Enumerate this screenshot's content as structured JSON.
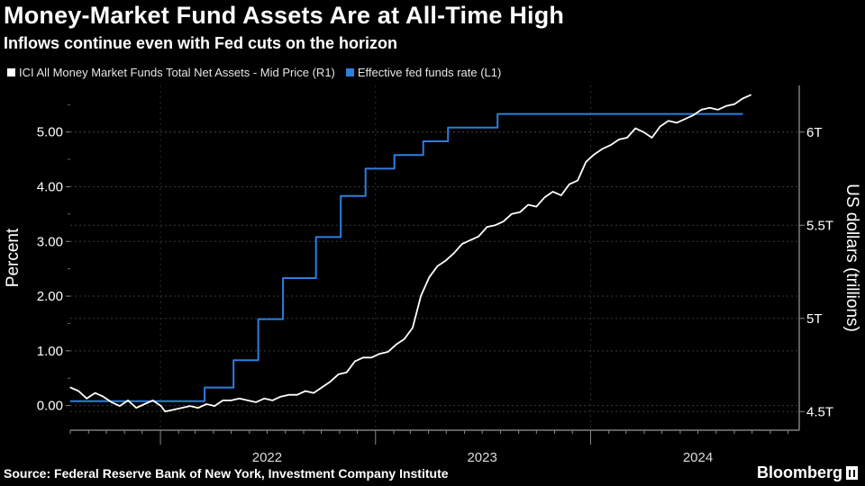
{
  "header": {
    "title": "Money-Market Fund Assets Are at All-Time High",
    "subtitle": "Inflows continue even with Fed cuts on the horizon"
  },
  "legend": {
    "items": [
      {
        "label": "ICI All Money Market Funds Total Net Assets - Mid Price (R1)",
        "color": "#ffffff"
      },
      {
        "label": "Effective fed funds rate  (L1)",
        "color": "#2f7de0"
      }
    ]
  },
  "footer": {
    "source": "Source: Federal Reserve Bank of New York, Investment Company Institute",
    "brand": "Bloomberg"
  },
  "chart_data": {
    "type": "line",
    "x_range": [
      "2021-08-01",
      "2024-12-20"
    ],
    "x_tick_labels": [
      "2022",
      "2023",
      "2024"
    ],
    "left_axis": {
      "label": "Percent",
      "range": [
        -0.45,
        5.85
      ],
      "ticks": [
        0.0,
        1.0,
        2.0,
        3.0,
        4.0,
        5.0
      ],
      "tick_labels": [
        "0.00",
        "1.00",
        "2.00",
        "3.00",
        "4.00",
        "5.00"
      ]
    },
    "right_axis": {
      "label": "US dollars (trillions)",
      "range": [
        4.4,
        6.25
      ],
      "ticks": [
        4.5,
        5.0,
        5.5,
        6.0
      ],
      "tick_labels": [
        "4.5T",
        "5T",
        "5.5T",
        "6T"
      ]
    },
    "grid": true,
    "series": [
      {
        "name": "Effective fed funds rate  (L1)",
        "axis": "left",
        "color": "#2f7de0",
        "step": true,
        "points": [
          [
            "2021-08-01",
            0.08
          ],
          [
            "2022-03-17",
            0.33
          ],
          [
            "2022-05-05",
            0.83
          ],
          [
            "2022-06-16",
            1.58
          ],
          [
            "2022-07-28",
            2.33
          ],
          [
            "2022-09-22",
            3.08
          ],
          [
            "2022-11-03",
            3.83
          ],
          [
            "2022-12-15",
            4.33
          ],
          [
            "2023-02-02",
            4.58
          ],
          [
            "2023-03-23",
            4.83
          ],
          [
            "2023-05-04",
            5.08
          ],
          [
            "2023-07-27",
            5.33
          ],
          [
            "2024-09-15",
            5.33
          ]
        ]
      },
      {
        "name": "ICI All Money Market Funds Total Net Assets - Mid Price (R1)",
        "axis": "right",
        "color": "#ffffff",
        "points": [
          [
            "2021-08-01",
            4.63
          ],
          [
            "2021-08-15",
            4.61
          ],
          [
            "2021-08-29",
            4.57
          ],
          [
            "2021-09-12",
            4.6
          ],
          [
            "2021-09-26",
            4.58
          ],
          [
            "2021-10-10",
            4.55
          ],
          [
            "2021-10-24",
            4.53
          ],
          [
            "2021-11-07",
            4.56
          ],
          [
            "2021-11-21",
            4.52
          ],
          [
            "2021-12-05",
            4.54
          ],
          [
            "2021-12-19",
            4.56
          ],
          [
            "2022-01-02",
            4.53
          ],
          [
            "2022-01-09",
            4.5
          ],
          [
            "2022-01-23",
            4.51
          ],
          [
            "2022-02-06",
            4.52
          ],
          [
            "2022-02-20",
            4.53
          ],
          [
            "2022-03-06",
            4.52
          ],
          [
            "2022-03-20",
            4.54
          ],
          [
            "2022-04-03",
            4.53
          ],
          [
            "2022-04-17",
            4.56
          ],
          [
            "2022-05-01",
            4.56
          ],
          [
            "2022-05-15",
            4.57
          ],
          [
            "2022-05-29",
            4.56
          ],
          [
            "2022-06-12",
            4.55
          ],
          [
            "2022-06-26",
            4.57
          ],
          [
            "2022-07-10",
            4.56
          ],
          [
            "2022-07-24",
            4.58
          ],
          [
            "2022-08-07",
            4.59
          ],
          [
            "2022-08-21",
            4.59
          ],
          [
            "2022-09-04",
            4.61
          ],
          [
            "2022-09-18",
            4.6
          ],
          [
            "2022-10-02",
            4.63
          ],
          [
            "2022-10-16",
            4.66
          ],
          [
            "2022-10-30",
            4.7
          ],
          [
            "2022-11-13",
            4.71
          ],
          [
            "2022-11-27",
            4.77
          ],
          [
            "2022-12-11",
            4.79
          ],
          [
            "2022-12-25",
            4.79
          ],
          [
            "2023-01-08",
            4.81
          ],
          [
            "2023-01-22",
            4.82
          ],
          [
            "2023-02-05",
            4.86
          ],
          [
            "2023-02-19",
            4.89
          ],
          [
            "2023-03-05",
            4.95
          ],
          [
            "2023-03-19",
            5.12
          ],
          [
            "2023-04-02",
            5.22
          ],
          [
            "2023-04-16",
            5.28
          ],
          [
            "2023-04-30",
            5.31
          ],
          [
            "2023-05-14",
            5.35
          ],
          [
            "2023-05-28",
            5.4
          ],
          [
            "2023-06-11",
            5.42
          ],
          [
            "2023-06-25",
            5.44
          ],
          [
            "2023-07-09",
            5.49
          ],
          [
            "2023-07-23",
            5.5
          ],
          [
            "2023-08-06",
            5.52
          ],
          [
            "2023-08-20",
            5.56
          ],
          [
            "2023-09-03",
            5.57
          ],
          [
            "2023-09-17",
            5.61
          ],
          [
            "2023-10-01",
            5.6
          ],
          [
            "2023-10-15",
            5.65
          ],
          [
            "2023-10-29",
            5.68
          ],
          [
            "2023-11-12",
            5.66
          ],
          [
            "2023-11-26",
            5.72
          ],
          [
            "2023-12-10",
            5.74
          ],
          [
            "2023-12-24",
            5.84
          ],
          [
            "2024-01-07",
            5.88
          ],
          [
            "2024-01-21",
            5.91
          ],
          [
            "2024-02-04",
            5.93
          ],
          [
            "2024-02-18",
            5.96
          ],
          [
            "2024-03-03",
            5.97
          ],
          [
            "2024-03-17",
            6.02
          ],
          [
            "2024-03-31",
            6.0
          ],
          [
            "2024-04-14",
            5.97
          ],
          [
            "2024-04-28",
            6.03
          ],
          [
            "2024-05-12",
            6.06
          ],
          [
            "2024-05-26",
            6.05
          ],
          [
            "2024-06-09",
            6.07
          ],
          [
            "2024-06-23",
            6.09
          ],
          [
            "2024-07-07",
            6.12
          ],
          [
            "2024-07-21",
            6.13
          ],
          [
            "2024-08-04",
            6.12
          ],
          [
            "2024-08-18",
            6.14
          ],
          [
            "2024-09-01",
            6.15
          ],
          [
            "2024-09-15",
            6.18
          ],
          [
            "2024-09-29",
            6.2
          ]
        ]
      }
    ]
  }
}
